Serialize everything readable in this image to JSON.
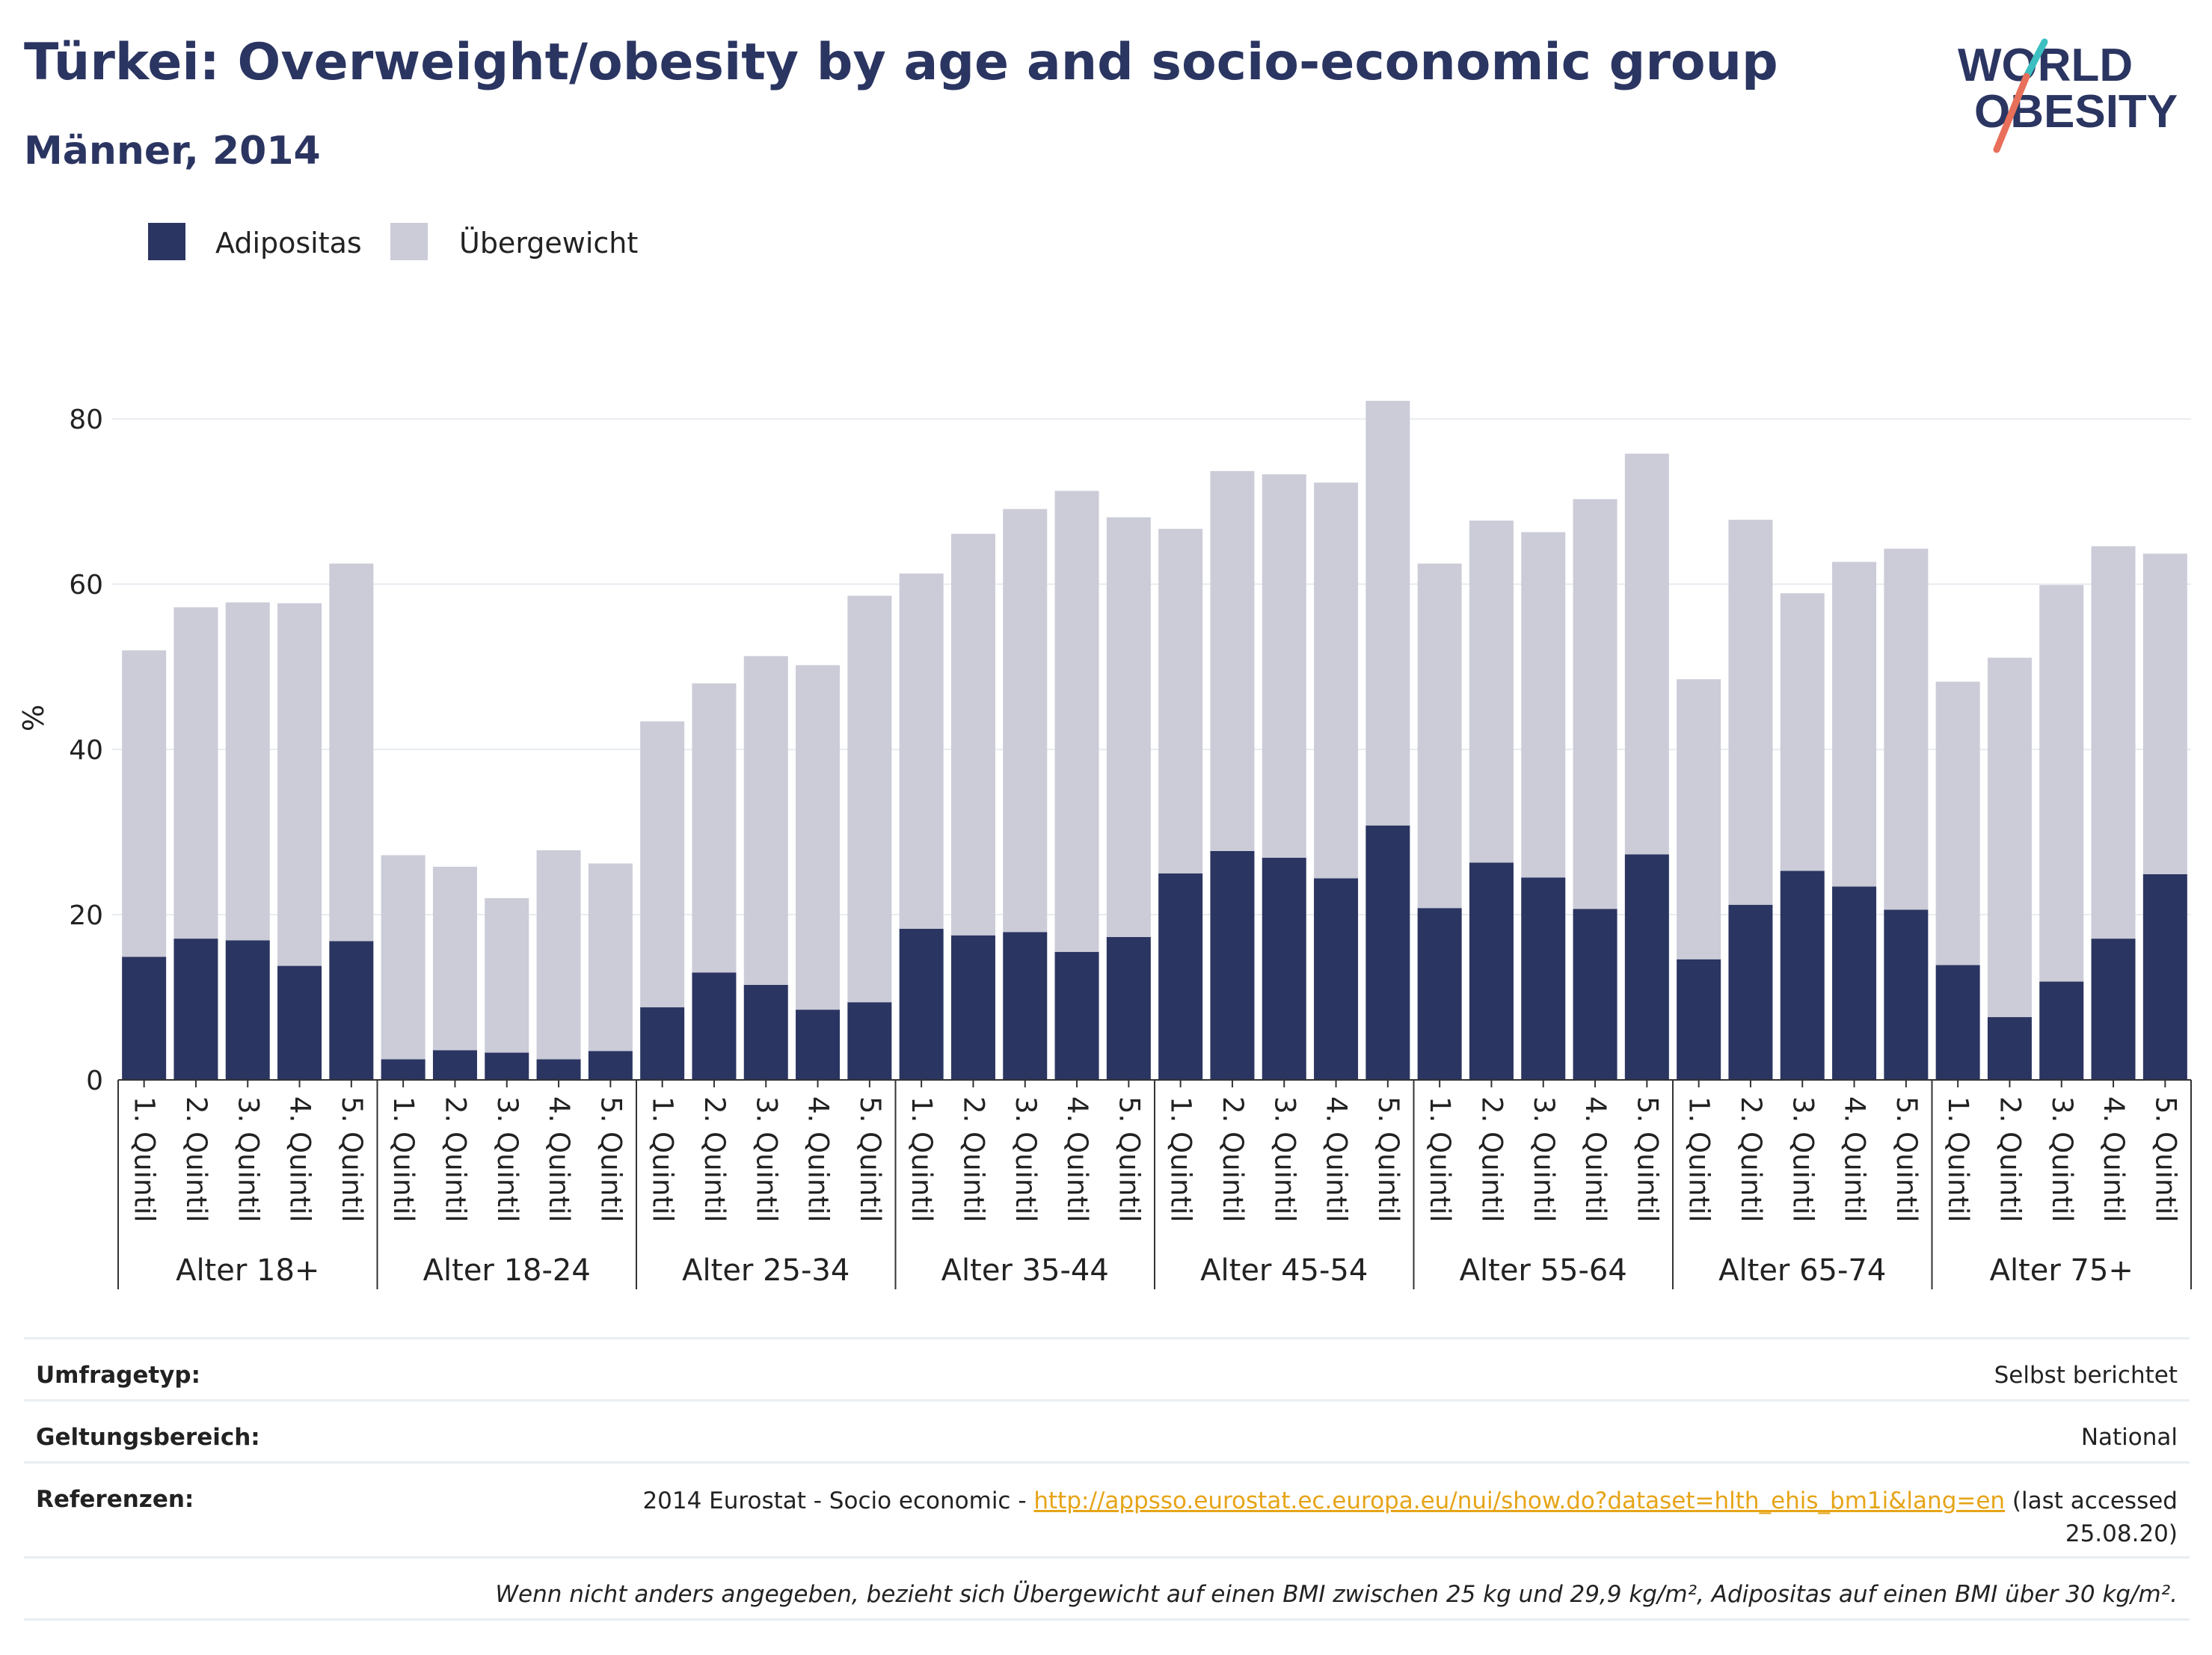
{
  "header": {
    "title": "Türkei: Overweight/obesity by age and socio-economic group",
    "subtitle": "Männer, 2014"
  },
  "logo": {
    "line1": "WORLD",
    "line2": "OBESITY",
    "colors": {
      "text": "#2b3561",
      "slash_teal": "#3bbfc1",
      "slash_coral": "#e8705a"
    }
  },
  "colors": {
    "obesity": "#2b3561",
    "overweight": "#cbccd8",
    "grid": "#e8ecf0",
    "axis": "#333333"
  },
  "chart_data": {
    "type": "bar",
    "stacked": true,
    "ylabel": "%",
    "ylim": [
      0,
      85
    ],
    "yticks": [
      0,
      20,
      40,
      60,
      80
    ],
    "grid": true,
    "legend_position": "top-left",
    "groups": [
      "Alter 18+",
      "Alter 18-24",
      "Alter 25-34",
      "Alter 35-44",
      "Alter 45-54",
      "Alter 55-64",
      "Alter 65-74",
      "Alter 75+"
    ],
    "categories": [
      "1. Quintil",
      "2. Quintil",
      "3. Quintil",
      "4. Quintil",
      "5. Quintil"
    ],
    "series": [
      {
        "name": "Adipositas",
        "values": [
          [
            14.9,
            17.1,
            16.9,
            13.8,
            16.8
          ],
          [
            2.5,
            3.6,
            3.3,
            2.5,
            3.5
          ],
          [
            8.8,
            13.0,
            11.5,
            8.5,
            9.4
          ],
          [
            18.3,
            17.5,
            17.9,
            15.5,
            17.3
          ],
          [
            25.0,
            27.7,
            26.9,
            24.4,
            30.8
          ],
          [
            20.8,
            26.3,
            24.5,
            20.7,
            27.3
          ],
          [
            14.6,
            21.2,
            25.3,
            23.4,
            20.6
          ],
          [
            13.9,
            7.6,
            11.9,
            17.1,
            24.9
          ]
        ]
      },
      {
        "name": "Übergewicht",
        "values": [
          [
            37.1,
            40.1,
            40.9,
            43.9,
            45.7
          ],
          [
            24.7,
            22.2,
            18.7,
            25.3,
            22.7
          ],
          [
            34.6,
            35.0,
            39.8,
            41.7,
            49.2
          ],
          [
            43.0,
            48.6,
            51.2,
            55.8,
            50.8
          ],
          [
            41.7,
            46.0,
            46.4,
            47.9,
            51.4
          ],
          [
            41.7,
            41.4,
            41.8,
            49.6,
            48.5
          ],
          [
            33.9,
            46.6,
            33.6,
            39.3,
            43.7
          ],
          [
            34.3,
            43.5,
            48.0,
            47.5,
            38.8
          ]
        ]
      }
    ]
  },
  "meta": {
    "survey_type_label": "Umfragetyp:",
    "survey_type_value": "Selbst berichtet",
    "scope_label": "Geltungsbereich:",
    "scope_value": "National",
    "references_label": "Referenzen:",
    "references_prefix": "2014 Eurostat - Socio economic - ",
    "references_link": "http://appsso.eurostat.ec.europa.eu/nui/show.do?dataset=hlth_ehis_bm1i&lang=en",
    "references_suffix_1": " (last accessed",
    "references_suffix_2": "25.08.20)",
    "note": "Wenn nicht anders angegeben, bezieht sich Übergewicht auf einen BMI zwischen 25 kg und 29,9 kg/m², Adipositas auf einen BMI über 30 kg/m²."
  }
}
